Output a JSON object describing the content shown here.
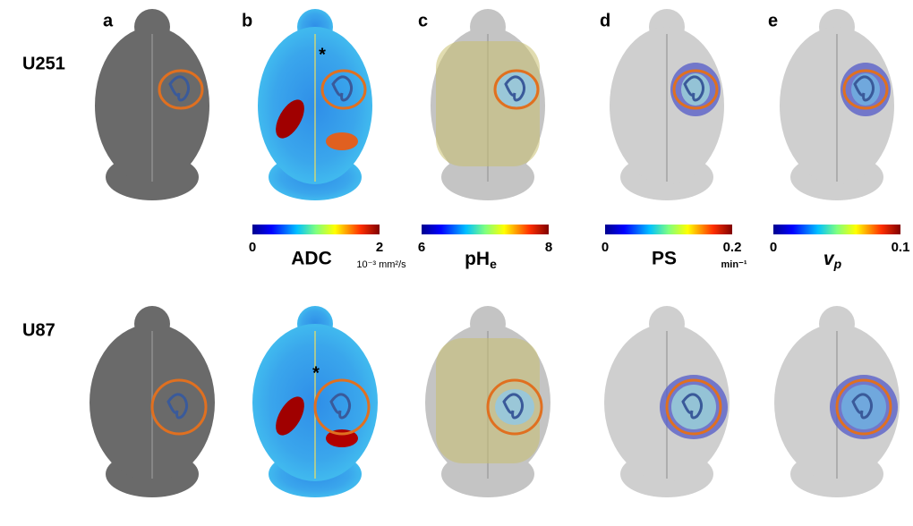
{
  "panels": [
    "a",
    "b",
    "c",
    "d",
    "e"
  ],
  "rows": [
    "U251",
    "U87"
  ],
  "colorbars": [
    {
      "min": "0",
      "max": "2",
      "label": "ADC",
      "unit": "10⁻³ mm²/s"
    },
    {
      "min": "6",
      "max": "8",
      "label": {
        "text": "pH",
        "sub": "e"
      }
    },
    {
      "min": "0",
      "max": "0.2",
      "label": "PS",
      "unit": "min⁻¹"
    },
    {
      "min": "0",
      "max": "0.1",
      "label": {
        "text": "v",
        "sub": "p"
      }
    }
  ],
  "annotations": [
    "*",
    "*"
  ]
}
